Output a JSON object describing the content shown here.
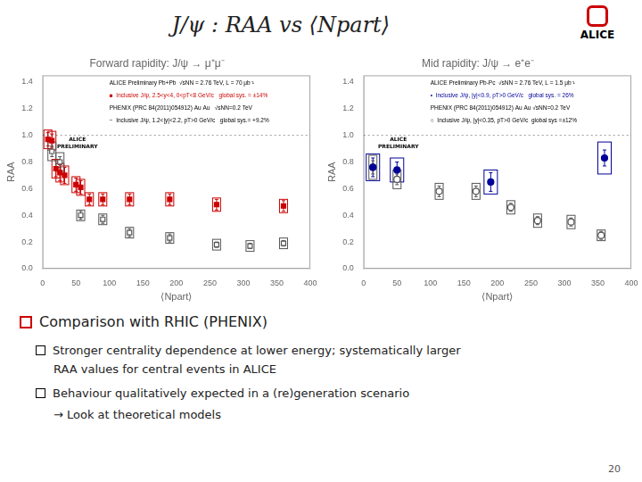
{
  "title": "J/ψ : RAA vs ⟨Npart⟩",
  "annotations": [
    "ALICE",
    "Comparison with RHIC (PHENIX)",
    "Stronger centrality dependence at lower energy; systematically larger",
    "RAA values for central events in ALICE",
    "Behaviour qualitatively expected in a (re)generation scenario",
    "→ Look at theoretical models",
    "20"
  ],
  "chart_data": [
    {
      "type": "scatter",
      "title": "Forward rapidity: J/ψ → μ⁺μ⁻",
      "xlabel": "⟨Npart⟩",
      "ylabel": "RAA",
      "xlim": [
        0,
        400
      ],
      "xticks": [
        0,
        50,
        100,
        150,
        200,
        250,
        300,
        350,
        400
      ],
      "ylim": [
        0,
        1.45
      ],
      "yticks": [
        {
          "value": 0,
          "label": "0.0"
        },
        0.2,
        0.4,
        0.6,
        0.8,
        {
          "value": 1,
          "label": "1.0"
        },
        1.2,
        1.4
      ],
      "grid": false,
      "hline": 1.0,
      "annotations": [
        {
          "text": "ALICE\nPRELIMINARY",
          "color": "#000000"
        },
        {
          "text": "ALICE Preliminary Pb+Pb  √sNN = 2.76 TeV, L = 70 μb⁻¹",
          "color": "#000000"
        },
        {
          "text": "■  Inclusive J/ψ, 2.5<y<4, 0<pT<8 GeV/c   global sys. = ±14%",
          "color": "#CC0000"
        },
        {
          "text": "PHENIX (PRC 84(2011)054912) Au Au   √sNN=0.2 TeV",
          "color": "#000000"
        },
        {
          "text": "−  Inclusive J/ψ, 1.2<|y|<2.2, pT>0 GeV/c   global sys.= +9.2%",
          "color": "#000000"
        }
      ],
      "series": [
        {
          "color": "#CC0000",
          "marker": "square",
          "x": [
            8,
            14,
            20,
            26,
            33,
            50,
            57,
            70,
            90,
            130,
            190,
            260,
            360
          ],
          "values": [
            0.97,
            0.96,
            0.75,
            0.72,
            0.7,
            0.63,
            0.61,
            0.52,
            0.52,
            0.52,
            0.52,
            0.48,
            0.47
          ],
          "yerr_stat": [
            0.05,
            0.05,
            0.06,
            0.06,
            0.06,
            0.05,
            0.05,
            0.04,
            0.04,
            0.04,
            0.04,
            0.04,
            0.04
          ],
          "yerr_syst": [
            0.07,
            0.07,
            0.07,
            0.07,
            0.07,
            0.06,
            0.06,
            0.05,
            0.05,
            0.05,
            0.05,
            0.05,
            0.05
          ]
        },
        {
          "color": "#555555",
          "marker": "open_square",
          "x": [
            14,
            26,
            57,
            90,
            130,
            190,
            260,
            310,
            360
          ],
          "values": [
            0.88,
            0.8,
            0.4,
            0.37,
            0.27,
            0.23,
            0.18,
            0.17,
            0.19
          ],
          "yerr_stat": [
            0.04,
            0.04,
            0.03,
            0.03,
            0.03,
            0.03,
            0.02,
            0.02,
            0.02
          ],
          "yerr_syst": [
            0.07,
            0.07,
            0.04,
            0.04,
            0.04,
            0.04,
            0.04,
            0.04,
            0.04
          ]
        }
      ]
    },
    {
      "type": "scatter",
      "title": "Mid rapidity: J/ψ → e⁺e⁻",
      "xlabel": "⟨Npart⟩",
      "ylabel": "RAA",
      "xlim": [
        0,
        400
      ],
      "xticks": [
        0,
        50,
        100,
        150,
        200,
        250,
        300,
        350,
        400
      ],
      "ylim": [
        0,
        1.45
      ],
      "yticks": [
        {
          "value": 0,
          "label": "0.0"
        },
        0.2,
        0.4,
        0.6,
        0.8,
        {
          "value": 1,
          "label": "1.0"
        },
        1.2,
        1.4
      ],
      "grid": false,
      "hline": 1.0,
      "annotations": [
        {
          "text": "ALICE\nPRELIMINARY",
          "color": "#000000"
        },
        {
          "text": "ALICE Preliminary Pb-Pc  √sNN = 2.76 TeV, L = 1.5 μb⁻¹",
          "color": "#000000"
        },
        {
          "text": "•  Inclusive J/ψ, |y|<0.9, pT>0 GeV/c   global sys. = 26%",
          "color": "#000099"
        },
        {
          "text": "PHENIX (PRC 84(2011)054912) Au Au √sNN=0.2 TeV",
          "color": "#000000"
        },
        {
          "text": "○  Inclusive J/ψ, |y|<0.35, pT>0 GeV/c  global sys =±12%",
          "color": "#000000"
        }
      ],
      "series": [
        {
          "color": "#000099",
          "marker": "circle",
          "x": [
            14,
            50,
            190,
            360
          ],
          "values": [
            0.76,
            0.74,
            0.65,
            0.83
          ],
          "yerr_stat": [
            0.07,
            0.06,
            0.07,
            0.06
          ],
          "yerr_syst": [
            0.1,
            0.09,
            0.09,
            0.12
          ]
        },
        {
          "color": "#555555",
          "marker": "open_circle",
          "x": [
            14,
            50,
            113,
            168,
            220,
            260,
            310,
            355
          ],
          "values": [
            0.76,
            0.67,
            0.58,
            0.58,
            0.46,
            0.36,
            0.35,
            0.25
          ],
          "yerr_stat": [
            0.05,
            0.04,
            0.04,
            0.04,
            0.03,
            0.03,
            0.03,
            0.03
          ],
          "yerr_syst": [
            0.09,
            0.07,
            0.06,
            0.06,
            0.05,
            0.05,
            0.05,
            0.04
          ]
        }
      ]
    }
  ]
}
